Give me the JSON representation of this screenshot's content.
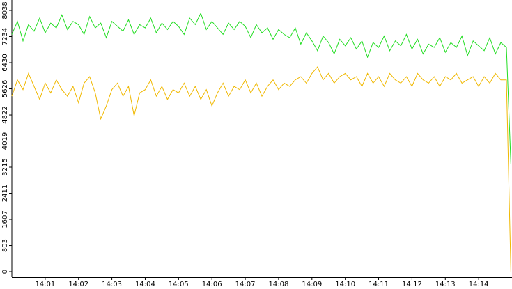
{
  "chart_data": {
    "type": "line",
    "x": [
      0,
      10,
      20,
      30,
      40,
      50,
      60,
      70,
      80,
      90,
      100,
      110,
      120,
      130,
      140,
      150,
      160,
      170,
      180,
      190,
      200,
      210,
      220,
      230,
      240,
      250,
      260,
      270,
      280,
      290,
      300,
      310,
      320,
      330,
      340,
      350,
      360,
      370,
      380,
      390,
      400,
      410,
      420,
      430,
      440,
      450,
      460,
      470,
      480,
      490,
      500,
      510,
      520,
      530,
      540,
      550,
      560,
      570,
      580,
      590,
      600,
      610,
      620,
      630,
      640,
      650,
      660,
      670,
      680,
      690,
      700,
      710,
      720,
      730,
      740,
      750,
      760,
      770,
      780,
      790,
      800,
      810,
      820,
      830,
      840,
      850,
      860,
      870,
      880,
      890,
      898
    ],
    "series": [
      {
        "color": "#22dd22",
        "values": [
          7300,
          7700,
          7100,
          7600,
          7400,
          7800,
          7350,
          7650,
          7500,
          7900,
          7450,
          7700,
          7600,
          7300,
          7850,
          7500,
          7650,
          7200,
          7700,
          7550,
          7400,
          7750,
          7300,
          7600,
          7500,
          7800,
          7350,
          7650,
          7450,
          7700,
          7550,
          7300,
          7800,
          7600,
          7950,
          7450,
          7700,
          7500,
          7300,
          7650,
          7450,
          7700,
          7550,
          7200,
          7600,
          7350,
          7500,
          7150,
          7450,
          7300,
          7200,
          7500,
          7000,
          7350,
          7100,
          6800,
          7250,
          7050,
          6700,
          7150,
          6950,
          7200,
          6850,
          7100,
          6600,
          7050,
          6900,
          7250,
          6800,
          7100,
          6950,
          7300,
          6850,
          7150,
          6700,
          7000,
          6900,
          7200,
          6750,
          7050,
          6900,
          7250,
          6650,
          7100,
          6950,
          6800,
          7200,
          6700,
          7050,
          6900,
          3300
        ]
      },
      {
        "color": "#f0b800",
        "values": [
          5400,
          5900,
          5600,
          6100,
          5700,
          5300,
          5800,
          5500,
          5900,
          5600,
          5400,
          5700,
          5200,
          5800,
          6000,
          5500,
          4700,
          5100,
          5600,
          5800,
          5400,
          5700,
          4800,
          5500,
          5600,
          5900,
          5400,
          5700,
          5300,
          5600,
          5500,
          5800,
          5400,
          5700,
          5300,
          5600,
          5100,
          5500,
          5800,
          5400,
          5700,
          5600,
          5900,
          5500,
          5800,
          5400,
          5700,
          5900,
          5600,
          5800,
          5700,
          5900,
          6000,
          5800,
          6100,
          6300,
          5900,
          6100,
          5800,
          6000,
          6100,
          5900,
          6000,
          5700,
          6100,
          5800,
          6000,
          5700,
          6100,
          5900,
          5800,
          6000,
          5700,
          6100,
          5900,
          5800,
          6000,
          5700,
          6000,
          5900,
          6100,
          5800,
          5900,
          6000,
          5700,
          6000,
          5800,
          6100,
          5900,
          5900,
          0
        ]
      }
    ],
    "xlim": [
      0,
      900
    ],
    "xticks": [
      {
        "value": 60,
        "label": "14:01"
      },
      {
        "value": 120,
        "label": "14:02"
      },
      {
        "value": 180,
        "label": "14:03"
      },
      {
        "value": 240,
        "label": "14:04"
      },
      {
        "value": 300,
        "label": "14:05"
      },
      {
        "value": 360,
        "label": "14:06"
      },
      {
        "value": 420,
        "label": "14:07"
      },
      {
        "value": 480,
        "label": "14:08"
      },
      {
        "value": 540,
        "label": "14:09"
      },
      {
        "value": 600,
        "label": "14:10"
      },
      {
        "value": 660,
        "label": "14:11"
      },
      {
        "value": 720,
        "label": "14:12"
      },
      {
        "value": 780,
        "label": "14:13"
      },
      {
        "value": 840,
        "label": "14:14"
      }
    ],
    "ylim": [
      0,
      8038
    ],
    "yticks": [
      0,
      803,
      1607,
      2411,
      3215,
      4019,
      4822,
      5626,
      6430,
      7234,
      8038
    ]
  }
}
